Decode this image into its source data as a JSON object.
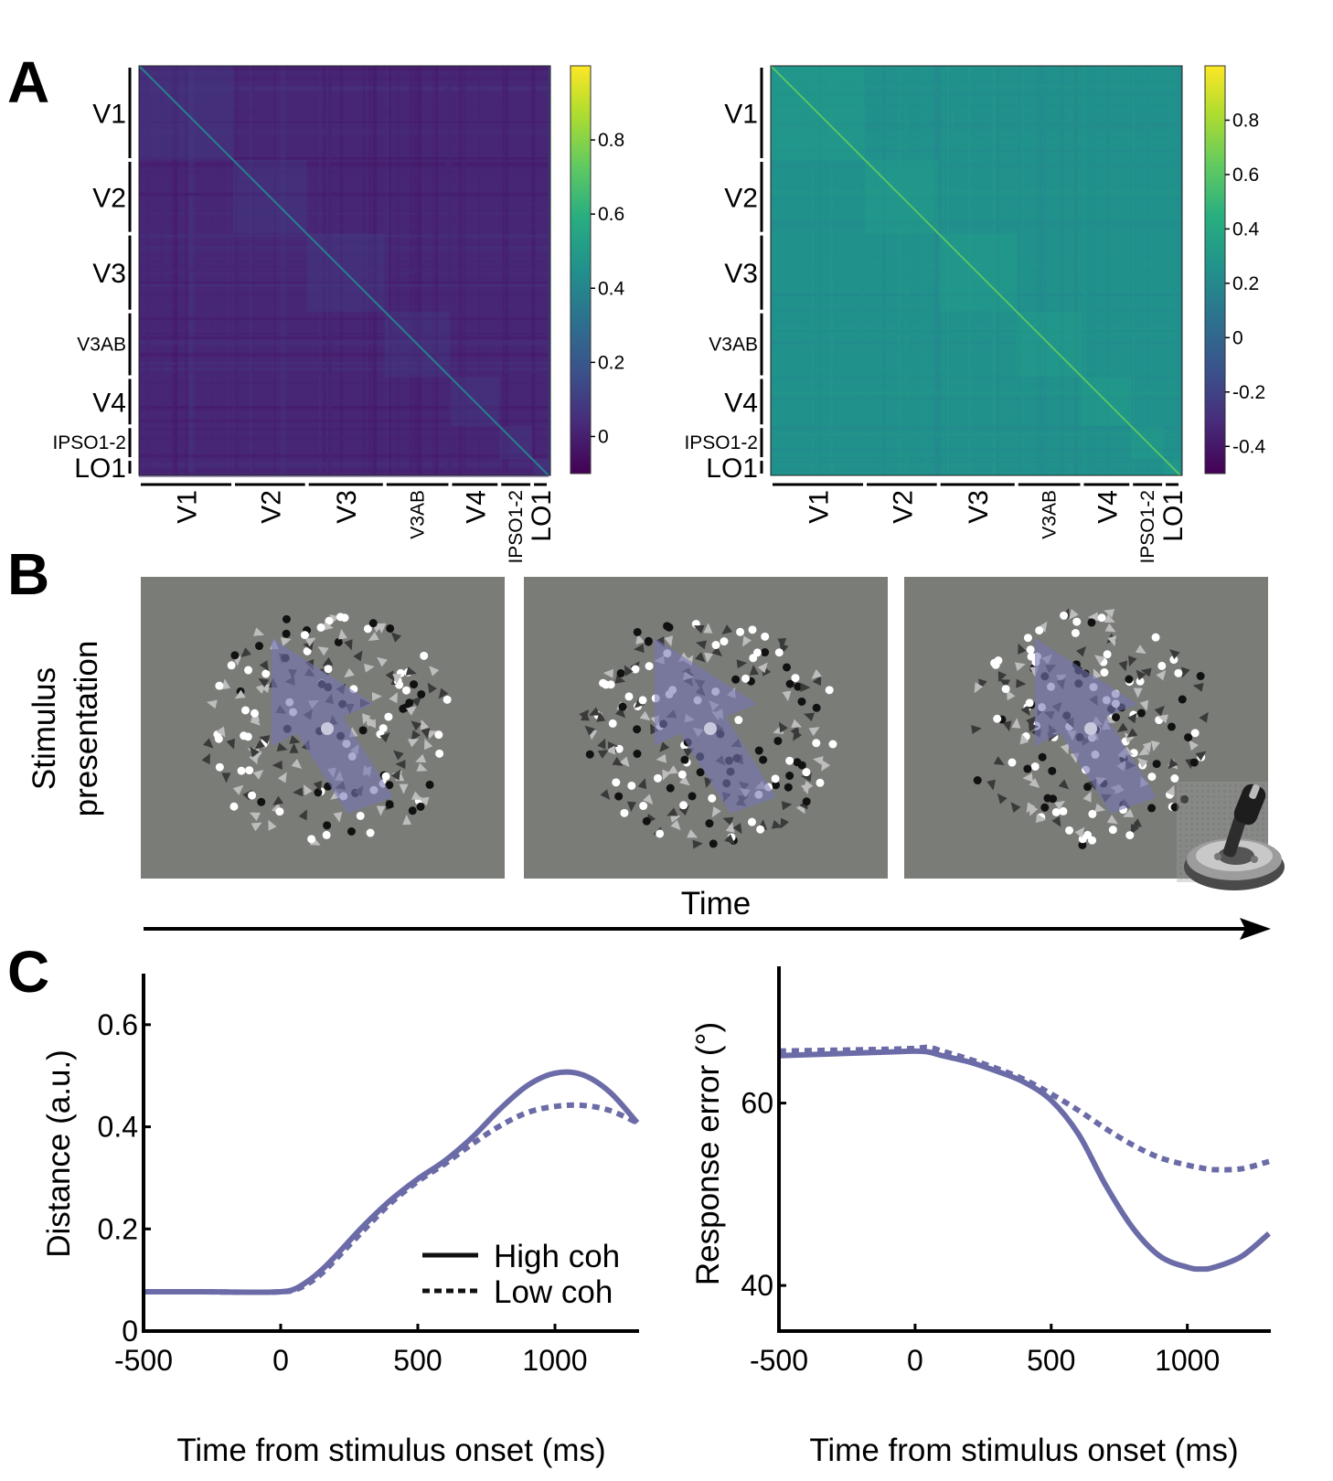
{
  "panels": {
    "a": {
      "letter": "A"
    },
    "b": {
      "letter": "B"
    },
    "c": {
      "letter": "C"
    }
  },
  "panel_a": {
    "roi_labels": [
      "V1",
      "V2",
      "V3",
      "V3AB",
      "V4",
      "IPSO1-2",
      "LO1"
    ],
    "roi_fractions": [
      0.23,
      0.18,
      0.19,
      0.16,
      0.12,
      0.08,
      0.04
    ],
    "left_matrix": {
      "colorbar_ticks": [
        "0.8",
        "0.6",
        "0.4",
        "0.2",
        "0"
      ],
      "colorbar_values": [
        0.8,
        0.6,
        0.4,
        0.2,
        0
      ],
      "colorbar_range": [
        -0.1,
        1.0
      ],
      "base_value": 0.02
    },
    "right_matrix": {
      "colorbar_ticks": [
        "0.8",
        "0.6",
        "0.4",
        "0.2",
        "0",
        "-0.2",
        "-0.4"
      ],
      "colorbar_values": [
        0.8,
        0.6,
        0.4,
        0.2,
        0,
        -0.2,
        -0.4
      ],
      "colorbar_range": [
        -0.5,
        1.0
      ],
      "base_value": 0.25
    },
    "colors": {
      "viridis_low": "#440154",
      "viridis_mid": "#21918c",
      "viridis_high": "#fde725"
    }
  },
  "panel_b": {
    "ylabel_line1": "Stimulus",
    "ylabel_line2": "presentation",
    "time_label": "Time",
    "frames": 3,
    "colors": {
      "background": "#7a7c78",
      "arrow": "#7777b5"
    }
  },
  "chart_data": [
    {
      "type": "line",
      "title": "",
      "xlabel": "Time from stimulus onset (ms)",
      "ylabel": "Distance (a.u.)",
      "xlim": [
        -500,
        1300
      ],
      "ylim": [
        0,
        0.7
      ],
      "xticks": [
        -500,
        0,
        500,
        1000
      ],
      "xtick_labels": [
        "-500",
        "0",
        "500",
        "1000"
      ],
      "yticks": [
        0,
        0.2,
        0.4,
        0.6
      ],
      "ytick_labels": [
        "0",
        "0.2",
        "0.4",
        "0.6"
      ],
      "legend": [
        "High coh",
        "Low coh"
      ],
      "legend_position": "bottom-right",
      "x": [
        -500,
        -300,
        -100,
        0,
        50,
        100,
        150,
        200,
        300,
        400,
        500,
        600,
        700,
        800,
        900,
        1000,
        1100,
        1200,
        1300
      ],
      "series": [
        {
          "name": "High coh",
          "style": "solid",
          "values": [
            0.077,
            0.077,
            0.076,
            0.077,
            0.082,
            0.098,
            0.12,
            0.147,
            0.205,
            0.256,
            0.298,
            0.334,
            0.38,
            0.435,
            0.481,
            0.505,
            0.502,
            0.468,
            0.408
          ]
        },
        {
          "name": "Low coh",
          "style": "dotted",
          "values": [
            0.077,
            0.077,
            0.076,
            0.077,
            0.08,
            0.093,
            0.113,
            0.14,
            0.196,
            0.25,
            0.293,
            0.328,
            0.367,
            0.402,
            0.428,
            0.44,
            0.442,
            0.432,
            0.408
          ]
        }
      ]
    },
    {
      "type": "line",
      "title": "",
      "xlabel": "Time from stimulus onset (ms)",
      "ylabel": "Response error (°)",
      "xlim": [
        -500,
        1300
      ],
      "ylim": [
        35,
        75
      ],
      "xticks": [
        -500,
        0,
        500,
        1000
      ],
      "xtick_labels": [
        "-500",
        "0",
        "500",
        "1000"
      ],
      "yticks": [
        40,
        60
      ],
      "ytick_labels": [
        "40",
        "60"
      ],
      "x": [
        -500,
        -300,
        -100,
        0,
        50,
        100,
        200,
        300,
        400,
        500,
        600,
        700,
        800,
        900,
        1000,
        1050,
        1100,
        1200,
        1300
      ],
      "series": [
        {
          "name": "High coh",
          "style": "solid",
          "values": [
            65.2,
            65.4,
            65.6,
            65.7,
            65.6,
            65.2,
            64.5,
            63.5,
            62.3,
            60.3,
            56.6,
            51.0,
            46.3,
            43.2,
            42.0,
            41.8,
            42.0,
            43.2,
            45.7
          ]
        },
        {
          "name": "Low coh",
          "style": "dotted",
          "values": [
            65.7,
            65.8,
            65.9,
            66.0,
            66.1,
            65.7,
            64.8,
            63.8,
            62.6,
            61.0,
            59.2,
            57.2,
            55.4,
            54.0,
            53.2,
            52.9,
            52.7,
            52.8,
            53.6
          ]
        }
      ],
      "line_color": "#6b6ba8"
    }
  ]
}
